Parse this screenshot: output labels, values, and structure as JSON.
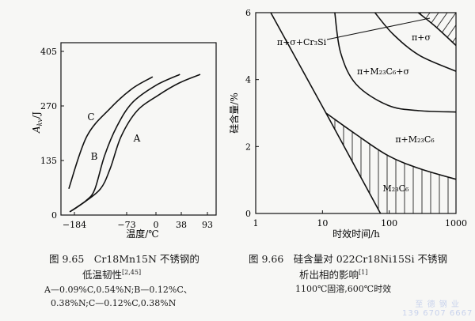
{
  "chart_data": [
    {
      "type": "line",
      "xlabel": "温度/℃",
      "ylabel": "A_kv/J",
      "ylabel_main": "A",
      "ylabel_sub": "kv",
      "ylabel_unit": "/J",
      "xticks": [
        -184,
        -73,
        0,
        38,
        93
      ],
      "yticks": [
        0,
        135,
        270,
        405
      ],
      "ylim": [
        0,
        405
      ],
      "grid": false,
      "series": [
        {
          "name": "A",
          "points": [
            [
              -194,
              8
            ],
            [
              -174,
              23
            ],
            [
              -130,
              63
            ],
            [
              -108,
              115
            ],
            [
              -85,
              194
            ],
            [
              -47,
              258
            ],
            [
              4,
              297
            ],
            [
              35,
              327
            ],
            [
              78,
              348
            ]
          ]
        },
        {
          "name": "B",
          "points": [
            [
              -194,
              8
            ],
            [
              -160,
              35
            ],
            [
              -141,
              63
            ],
            [
              -120,
              147
            ],
            [
              -94,
              219
            ],
            [
              -59,
              278
            ],
            [
              0,
              321
            ],
            [
              36,
              348
            ]
          ]
        },
        {
          "name": "C",
          "points": [
            [
              -196,
              65
            ],
            [
              -158,
              194
            ],
            [
              -108,
              264
            ],
            [
              -59,
              313
            ],
            [
              -8,
              342
            ]
          ]
        }
      ]
    },
    {
      "type": "area",
      "xlabel": "时效时间/h",
      "ylabel": "硅含量/%",
      "xscale": "log",
      "xlim": [
        1,
        1000
      ],
      "ylim": [
        0,
        6
      ],
      "xticks": [
        1,
        10,
        100,
        1000
      ],
      "yticks": [
        0,
        2,
        4,
        6
      ],
      "grid": false,
      "boundaries": {
        "start_line": [
          [
            1.68,
            6
          ],
          [
            11.3,
            3.0
          ],
          [
            74,
            0
          ]
        ],
        "m23c6_upper": [
          [
            11.3,
            3.0
          ],
          [
            32,
            2.36
          ],
          [
            96,
            1.73
          ],
          [
            285,
            1.34
          ],
          [
            1000,
            1.02
          ]
        ],
        "m23c6_sigma_lower": [
          [
            15.3,
            6
          ],
          [
            18.7,
            4.8
          ],
          [
            32,
            3.86
          ],
          [
            96,
            3.23
          ],
          [
            285,
            3.07
          ],
          [
            1000,
            3.03
          ]
        ],
        "sigma_lower": [
          [
            61,
            6
          ],
          [
            115,
            5.35
          ],
          [
            285,
            4.72
          ],
          [
            1000,
            4.25
          ]
        ],
        "cr3si_lower": [
          [
            273,
            6
          ],
          [
            490,
            5.59
          ],
          [
            1000,
            5.02
          ]
        ]
      },
      "regions": {
        "cr3si": "π+σ+Cr₃Si",
        "sigma": "π+σ",
        "m23c6_sigma": "π+M₂₃C₆+σ",
        "pi_m23c6": "π+M₂₃C₆",
        "m23c6": "M₂₃C₆"
      }
    }
  ],
  "captions": {
    "left_line1": "图 9.65　Cr18Mn15N 不锈钢的",
    "left_line2": "低温韧性",
    "left_ref": "[2,45]",
    "left_line3": "A—0.09%C,0.54%N;B—0.12%C、",
    "left_line4": "0.38%N;C—0.12%C,0.38%N",
    "right_line1": "图 9.66　硅含量对 022Cr18Ni15Si 不锈钢",
    "right_line2": "析出相的影响",
    "right_ref": "[1]",
    "right_line3": "1100℃固溶,600℃时效"
  },
  "watermark": {
    "line1": "至 德 钢 业",
    "line2": "139 6707 6667"
  }
}
